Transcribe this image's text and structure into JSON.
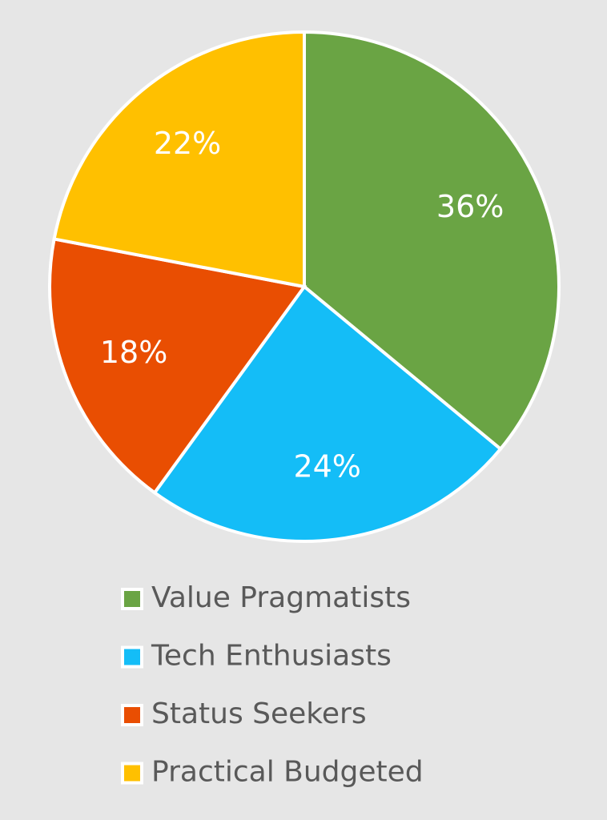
{
  "chart_data": {
    "type": "pie",
    "categories": [
      "Value Pragmatists",
      "Tech Enthusiasts",
      "Status Seekers",
      "Practical Budgeted"
    ],
    "values": [
      36,
      24,
      18,
      22
    ],
    "value_labels": [
      "36%",
      "24%",
      "18%",
      "22%"
    ],
    "colors": [
      "#6aa444",
      "#14bdf7",
      "#e94e02",
      "#ffc000"
    ],
    "legend": "bottom"
  }
}
